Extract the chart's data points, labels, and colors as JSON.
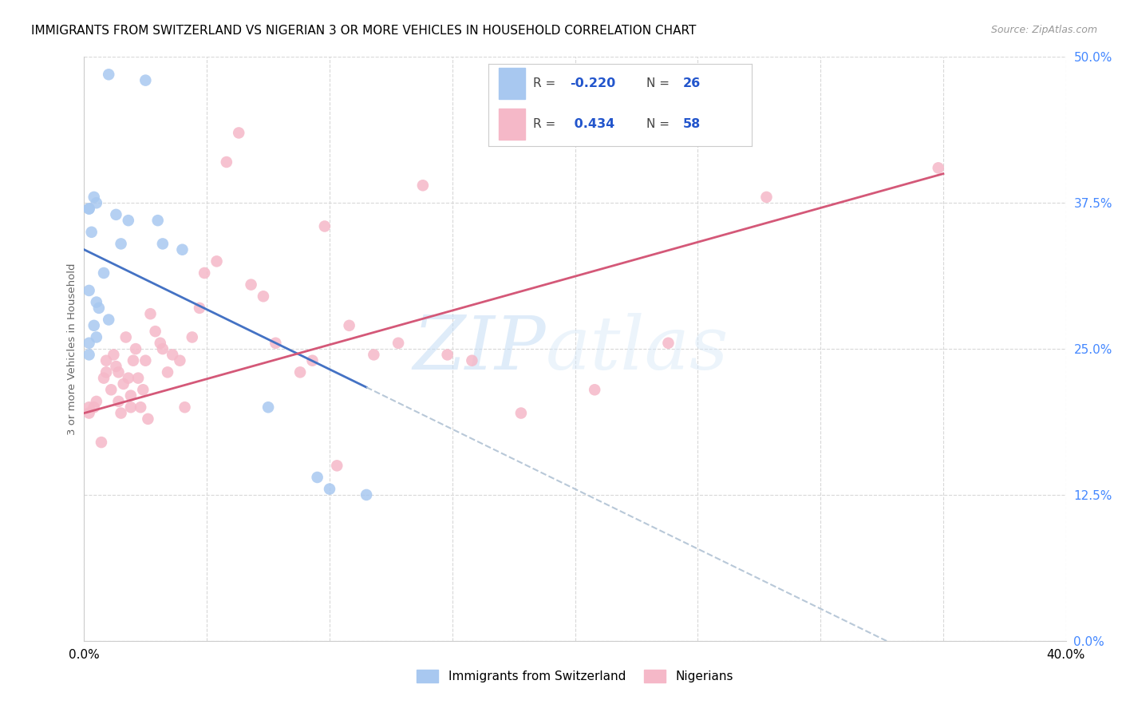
{
  "title": "IMMIGRANTS FROM SWITZERLAND VS NIGERIAN 3 OR MORE VEHICLES IN HOUSEHOLD CORRELATION CHART",
  "source": "Source: ZipAtlas.com",
  "ylabel_text": "3 or more Vehicles in Household",
  "watermark_zip": "ZIP",
  "watermark_atlas": "atlas",
  "xmin": 0.0,
  "xmax": 40.0,
  "ymin": 0.0,
  "ymax": 50.0,
  "yticks": [
    0.0,
    12.5,
    25.0,
    37.5,
    50.0
  ],
  "xticks": [
    0.0,
    5.0,
    10.0,
    15.0,
    20.0,
    25.0,
    30.0,
    35.0,
    40.0
  ],
  "legend_r1": "-0.220",
  "legend_n1": "26",
  "legend_r2": "0.434",
  "legend_n2": "58",
  "blue_scatter_color": "#a8c8f0",
  "pink_scatter_color": "#f5b8c8",
  "blue_line_color": "#4472c4",
  "pink_line_color": "#d45878",
  "dashed_line_color": "#b8c8d8",
  "swiss_x": [
    1.0,
    2.5,
    0.2,
    0.4,
    1.3,
    0.5,
    0.2,
    1.8,
    0.3,
    1.5,
    3.0,
    0.8,
    4.0,
    0.2,
    3.2,
    0.5,
    0.6,
    1.0,
    0.4,
    0.2,
    0.2,
    0.5,
    7.5,
    9.5,
    10.0,
    11.5
  ],
  "swiss_y": [
    48.5,
    48.0,
    37.0,
    38.0,
    36.5,
    37.5,
    37.0,
    36.0,
    35.0,
    34.0,
    36.0,
    31.5,
    33.5,
    30.0,
    34.0,
    29.0,
    28.5,
    27.5,
    27.0,
    25.5,
    24.5,
    26.0,
    20.0,
    14.0,
    13.0,
    12.5
  ],
  "nigerian_x": [
    0.2,
    0.2,
    0.4,
    0.5,
    0.7,
    0.8,
    0.9,
    0.9,
    1.1,
    1.2,
    1.3,
    1.4,
    1.4,
    1.5,
    1.6,
    1.7,
    1.8,
    1.9,
    1.9,
    2.0,
    2.1,
    2.2,
    2.3,
    2.4,
    2.5,
    2.6,
    2.7,
    2.9,
    3.1,
    3.2,
    3.4,
    3.6,
    3.9,
    4.1,
    4.4,
    4.7,
    4.9,
    5.4,
    5.8,
    6.3,
    6.8,
    7.3,
    7.8,
    8.8,
    9.3,
    9.8,
    10.3,
    10.8,
    11.8,
    12.8,
    13.8,
    14.8,
    15.8,
    17.8,
    20.8,
    23.8,
    27.8,
    34.8
  ],
  "nigerian_y": [
    20.0,
    19.5,
    20.0,
    20.5,
    17.0,
    22.5,
    24.0,
    23.0,
    21.5,
    24.5,
    23.5,
    23.0,
    20.5,
    19.5,
    22.0,
    26.0,
    22.5,
    20.0,
    21.0,
    24.0,
    25.0,
    22.5,
    20.0,
    21.5,
    24.0,
    19.0,
    28.0,
    26.5,
    25.5,
    25.0,
    23.0,
    24.5,
    24.0,
    20.0,
    26.0,
    28.5,
    31.5,
    32.5,
    41.0,
    43.5,
    30.5,
    29.5,
    25.5,
    23.0,
    24.0,
    35.5,
    15.0,
    27.0,
    24.5,
    25.5,
    39.0,
    24.5,
    24.0,
    19.5,
    21.5,
    25.5,
    38.0,
    40.5
  ],
  "blue_trend_x0": 0.0,
  "blue_trend_y0": 33.5,
  "blue_trend_x1": 20.0,
  "blue_trend_y1": 13.0,
  "pink_trend_x0": 0.0,
  "pink_trend_y0": 19.5,
  "pink_trend_x1": 35.0,
  "pink_trend_y1": 40.0
}
